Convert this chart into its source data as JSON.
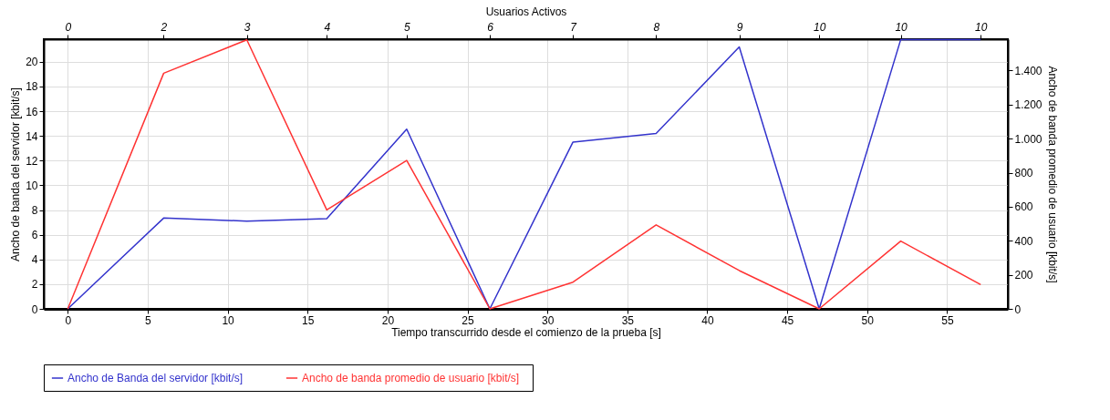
{
  "chart_data": {
    "type": "line",
    "xlabel": "Tiempo transcurrido desde el comienzo de la prueba [s]",
    "ylabel": "Ancho de banda del servidor [kbit/s]",
    "y2label": "Ancho de banda  promedio de usuario  [kbit/s]",
    "x2label": "Usuarios Activos",
    "x": [
      0,
      6,
      11.2,
      16.2,
      21.2,
      26.4,
      31.6,
      36.8,
      42,
      47,
      52.1,
      57.1
    ],
    "series": [
      {
        "name": "Ancho de Banda  del servidor [kbit/s]",
        "color": "#3333cc",
        "values": [
          0,
          7.35,
          7.1,
          7.3,
          14.55,
          0,
          13.5,
          14.2,
          21.2,
          0,
          21.8,
          21.8
        ]
      },
      {
        "name": "Ancho de banda  promedio de usuario  [kbit/s]",
        "color": "#ff3333",
        "axis": "y2",
        "values": [
          0,
          1384,
          1580,
          581,
          872,
          0,
          157,
          493,
          225,
          0,
          398,
          142
        ]
      }
    ],
    "xlim": [
      -1.5,
      58.8
    ],
    "xticks": [
      0,
      5,
      10,
      15,
      20,
      25,
      30,
      35,
      40,
      45,
      50,
      55
    ],
    "ylim": [
      0,
      21.83
    ],
    "yticks": [
      0,
      2,
      4,
      6,
      8,
      10,
      12,
      14,
      16,
      18,
      20
    ],
    "y2lim": [
      0,
      1584
    ],
    "y2ticks": [
      0,
      200,
      400,
      600,
      800,
      {
        "value": 1000,
        "label": "1.000"
      },
      {
        "value": 1200,
        "label": "1.200"
      },
      {
        "value": 1400,
        "label": "1.400"
      }
    ],
    "annotations": [
      {
        "text": "0",
        "x": 0
      },
      {
        "text": "2",
        "x": 6
      },
      {
        "text": "3",
        "x": 11.2
      },
      {
        "text": "4",
        "x": 16.2
      },
      {
        "text": "5",
        "x": 21.2
      },
      {
        "text": "6",
        "x": 26.4
      },
      {
        "text": "7",
        "x": 31.6
      },
      {
        "text": "8",
        "x": 36.8
      },
      {
        "text": "9",
        "x": 42
      },
      {
        "text": "10",
        "x": 47
      },
      {
        "text": "10",
        "x": 52.1
      },
      {
        "text": "10",
        "x": 57.1
      }
    ],
    "grid": true,
    "legend": "bottom",
    "marker": "none",
    "line_style": "solid"
  }
}
